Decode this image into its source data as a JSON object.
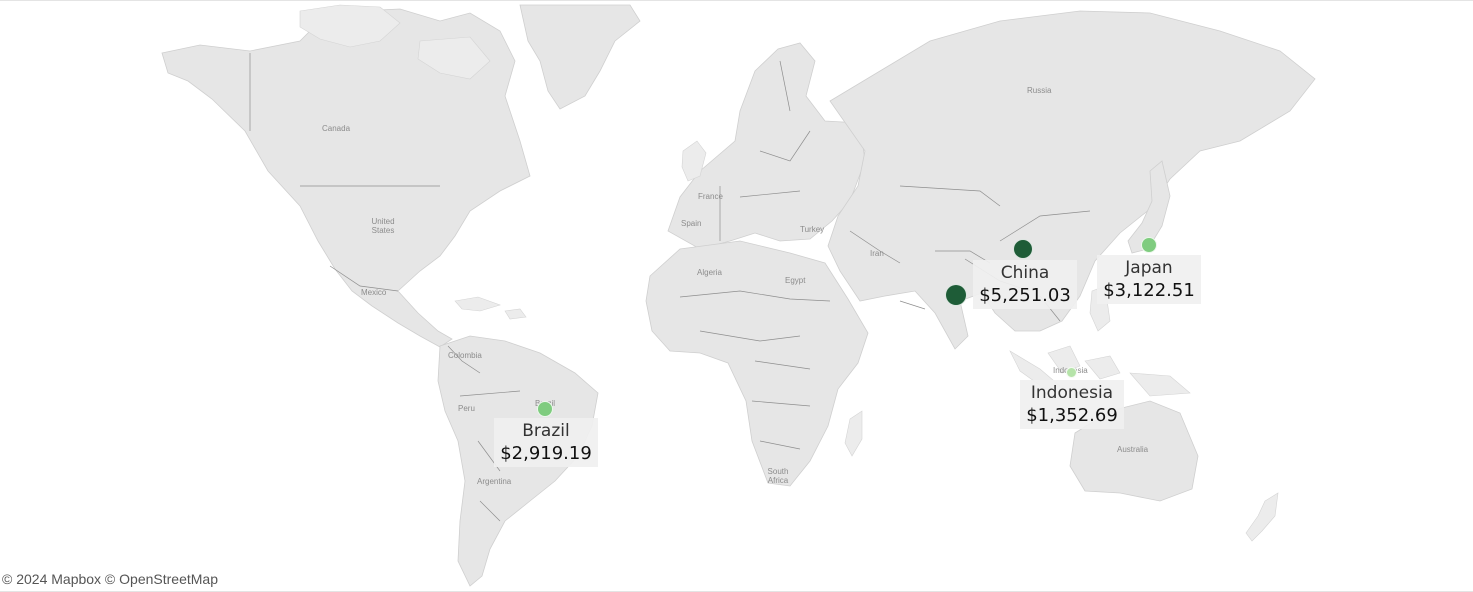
{
  "map": {
    "attribution": "© 2024 Mapbox © OpenStreetMap",
    "colors": {
      "land": "#e6e6e6",
      "borders": "#8e8e8e",
      "water": "#ffffff",
      "marker_dark": "#1e5c37",
      "marker_light": "#7fcc7f",
      "marker_pale": "#b5e3a9"
    },
    "place_labels": {
      "canada": "Canada",
      "united_states": "United\nStates",
      "mexico": "Mexico",
      "colombia": "Colombia",
      "peru": "Peru",
      "argentina": "Argentina",
      "brazil_base": "Brazil",
      "france": "France",
      "spain": "Spain",
      "algeria": "Algeria",
      "egypt": "Egypt",
      "turkey": "Turkey",
      "iran": "Iran",
      "russia": "Russia",
      "south_africa": "South\nAfrica",
      "australia": "Australia",
      "indonesia_base": "Indonesia"
    },
    "markers": [
      {
        "id": "china",
        "color": "#1e5c37",
        "size": "large"
      },
      {
        "id": "india",
        "color": "#1e5c37",
        "size": "large"
      },
      {
        "id": "japan",
        "color": "#7fcc7f",
        "size": "medium"
      },
      {
        "id": "brazil",
        "color": "#7fcc7f",
        "size": "medium"
      },
      {
        "id": "indonesia",
        "color": "#b5e3a9",
        "size": "small"
      }
    ],
    "labels": {
      "china": {
        "name": "China",
        "value": "$5,251.03"
      },
      "japan": {
        "name": "Japan",
        "value": "$3,122.51"
      },
      "indonesia": {
        "name": "Indonesia",
        "value": "$1,352.69"
      },
      "brazil": {
        "name": "Brazil",
        "value": "$2,919.19"
      }
    }
  }
}
